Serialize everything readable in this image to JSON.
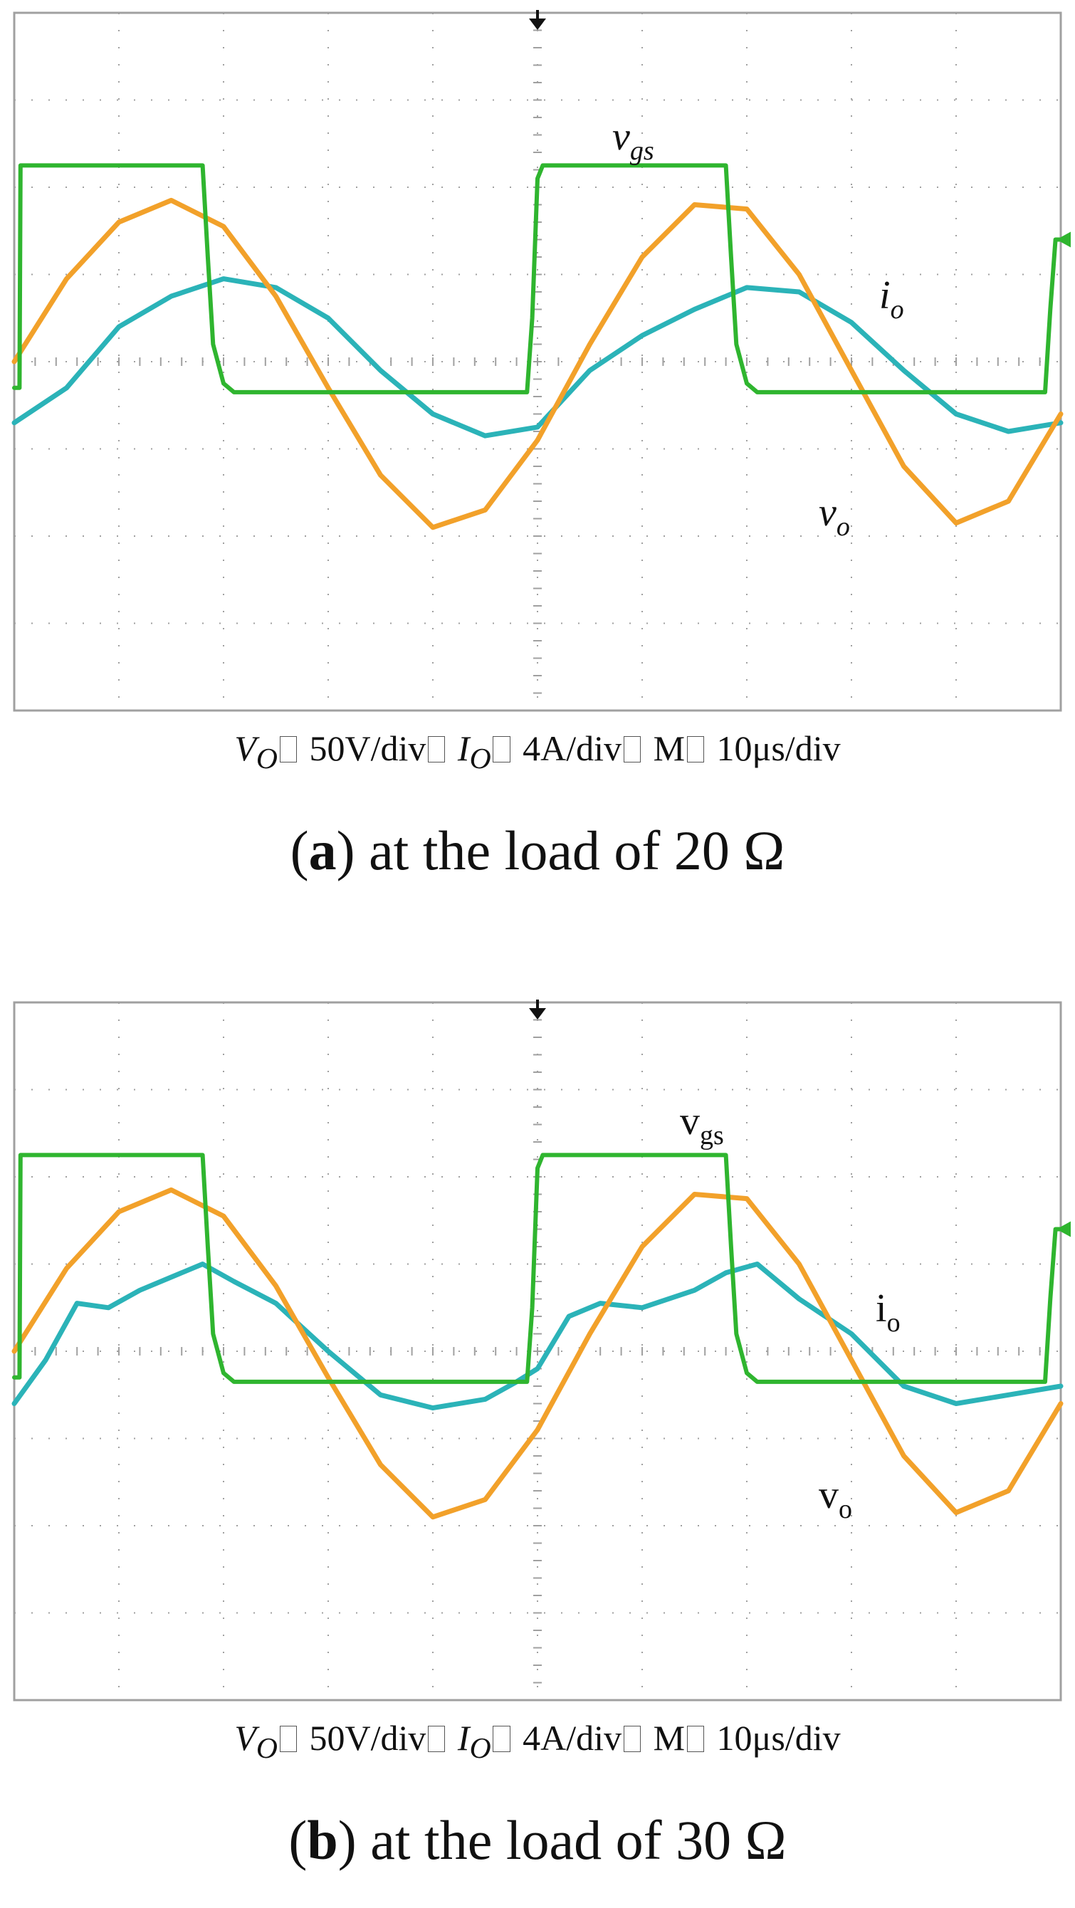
{
  "colors": {
    "vgs": "#2fb52f",
    "vo": "#f2a12a",
    "io": "#2bb3b8",
    "grid": "#a0a0a0",
    "marker": "#111111"
  },
  "panels": [
    {
      "scale": {
        "vo_sym": "V",
        "vo_sub": "O",
        "vo_val": "50V/div",
        "io_sym": "I",
        "io_sub": "O",
        "io_val": "4A/div",
        "m_sym": "M",
        "m_val": "10μs/div"
      },
      "caption": {
        "letter": "a",
        "text": " at the load of 20 Ω"
      },
      "labels": {
        "vgs": "v",
        "vgs_sub": "gs",
        "io": "i",
        "io_sub": "o",
        "vo": "v",
        "vo_sub": "o"
      }
    },
    {
      "scale": {
        "vo_sym": "V",
        "vo_sub": "O",
        "vo_val": "50V/div",
        "io_sym": "I",
        "io_sub": "O",
        "io_val": "4A/div",
        "m_sym": "M",
        "m_val": "10μs/div"
      },
      "caption": {
        "letter": "b",
        "text": " at the load of 30 Ω"
      },
      "labels": {
        "vgs": "v",
        "vgs_sub": "gs",
        "io": "i",
        "io_sub": "o",
        "vo": "v",
        "vo_sub": "o"
      }
    }
  ],
  "chart_data": [
    {
      "type": "line",
      "xlim": [
        0,
        10
      ],
      "ylim": [
        -4,
        4
      ],
      "grid": true,
      "series": [
        {
          "name": "vgs",
          "x": [
            0,
            0.05,
            0.06,
            1.8,
            1.85,
            1.9,
            2.0,
            2.1,
            4.9,
            4.95,
            5.0,
            5.05,
            6.8,
            6.85,
            6.9,
            7.0,
            7.1,
            9.85,
            9.9,
            9.95,
            10.0
          ],
          "values": [
            -0.3,
            -0.3,
            2.25,
            2.25,
            1.2,
            0.2,
            -0.25,
            -0.35,
            -0.35,
            0.5,
            2.1,
            2.25,
            2.25,
            1.2,
            0.2,
            -0.25,
            -0.35,
            -0.35,
            0.6,
            1.4,
            1.4
          ]
        },
        {
          "name": "vo",
          "x": [
            0,
            0.5,
            1.0,
            1.5,
            2.0,
            2.5,
            3.0,
            3.5,
            4.0,
            4.5,
            5.0,
            5.5,
            6.0,
            6.5,
            7.0,
            7.5,
            8.0,
            8.5,
            9.0,
            9.5,
            10.0
          ],
          "values": [
            0.0,
            0.95,
            1.6,
            1.85,
            1.55,
            0.75,
            -0.3,
            -1.3,
            -1.9,
            -1.7,
            -0.9,
            0.2,
            1.2,
            1.8,
            1.75,
            1.0,
            -0.1,
            -1.2,
            -1.85,
            -1.6,
            -0.6
          ]
        },
        {
          "name": "io",
          "x": [
            0,
            0.5,
            1.0,
            1.5,
            2.0,
            2.5,
            3.0,
            3.5,
            4.0,
            4.5,
            5.0,
            5.5,
            6.0,
            6.5,
            7.0,
            7.5,
            8.0,
            8.5,
            9.0,
            9.5,
            10.0
          ],
          "values": [
            -0.7,
            -0.3,
            0.4,
            0.75,
            0.95,
            0.85,
            0.5,
            -0.1,
            -0.6,
            -0.85,
            -0.75,
            -0.1,
            0.3,
            0.6,
            0.85,
            0.8,
            0.45,
            -0.1,
            -0.6,
            -0.8,
            -0.7
          ]
        }
      ]
    },
    {
      "type": "line",
      "xlim": [
        0,
        10
      ],
      "ylim": [
        -4,
        4
      ],
      "grid": true,
      "series": [
        {
          "name": "vgs",
          "x": [
            0,
            0.05,
            0.06,
            1.8,
            1.85,
            1.9,
            2.0,
            2.1,
            4.9,
            4.95,
            5.0,
            5.05,
            6.8,
            6.85,
            6.9,
            7.0,
            7.1,
            9.85,
            9.9,
            9.95,
            10.0
          ],
          "values": [
            -0.3,
            -0.3,
            2.25,
            2.25,
            1.2,
            0.2,
            -0.25,
            -0.35,
            -0.35,
            0.5,
            2.1,
            2.25,
            2.25,
            1.2,
            0.2,
            -0.25,
            -0.35,
            -0.35,
            0.6,
            1.4,
            1.4
          ]
        },
        {
          "name": "vo",
          "x": [
            0,
            0.5,
            1.0,
            1.5,
            2.0,
            2.5,
            3.0,
            3.5,
            4.0,
            4.5,
            5.0,
            5.5,
            6.0,
            6.5,
            7.0,
            7.5,
            8.0,
            8.5,
            9.0,
            9.5,
            10.0
          ],
          "values": [
            0.0,
            0.95,
            1.6,
            1.85,
            1.55,
            0.75,
            -0.3,
            -1.3,
            -1.9,
            -1.7,
            -0.9,
            0.2,
            1.2,
            1.8,
            1.75,
            1.0,
            -0.1,
            -1.2,
            -1.85,
            -1.6,
            -0.6
          ]
        },
        {
          "name": "io",
          "x": [
            0,
            0.3,
            0.6,
            0.9,
            1.2,
            1.5,
            1.8,
            2.1,
            2.5,
            3.0,
            3.5,
            4.0,
            4.5,
            4.8,
            5.0,
            5.3,
            5.6,
            6.0,
            6.5,
            6.8,
            7.1,
            7.5,
            8.0,
            8.5,
            9.0,
            9.5,
            10.0
          ],
          "values": [
            -0.6,
            -0.1,
            0.55,
            0.5,
            0.7,
            0.85,
            1.0,
            0.8,
            0.55,
            0.0,
            -0.5,
            -0.65,
            -0.55,
            -0.35,
            -0.2,
            0.4,
            0.55,
            0.5,
            0.7,
            0.9,
            1.0,
            0.6,
            0.2,
            -0.4,
            -0.6,
            -0.5,
            -0.4
          ]
        }
      ]
    }
  ]
}
